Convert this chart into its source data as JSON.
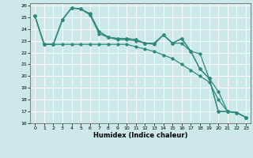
{
  "xlabel": "Humidex (Indice chaleur)",
  "bg_color": "#cce8e8",
  "grid_color": "#ffffff",
  "line_color": "#2e8b7a",
  "xlim": [
    -0.5,
    23.5
  ],
  "ylim": [
    16,
    26.2
  ],
  "yticks": [
    16,
    17,
    18,
    19,
    20,
    21,
    22,
    23,
    24,
    25,
    26
  ],
  "xticks": [
    0,
    1,
    2,
    3,
    4,
    5,
    6,
    7,
    8,
    9,
    10,
    11,
    12,
    13,
    14,
    15,
    16,
    17,
    18,
    19,
    20,
    21,
    22,
    23
  ],
  "line1_x": [
    0,
    1,
    2,
    3,
    4,
    5,
    6,
    7,
    8,
    9,
    10,
    11,
    12,
    13,
    14,
    15,
    16,
    17,
    18,
    19,
    20,
    21,
    22,
    23
  ],
  "line1_y": [
    25.1,
    22.7,
    22.7,
    22.7,
    22.7,
    22.7,
    22.7,
    22.7,
    22.7,
    22.7,
    22.7,
    22.5,
    22.3,
    22.1,
    21.8,
    21.5,
    21.0,
    20.5,
    20.0,
    19.5,
    18.0,
    17.0,
    16.9,
    16.5
  ],
  "line2_x": [
    0,
    1,
    2,
    3,
    4,
    5,
    6,
    7,
    8,
    9,
    10,
    11,
    12,
    13,
    14,
    15,
    16,
    17,
    18,
    19,
    20,
    21,
    22,
    23
  ],
  "line2_y": [
    25.1,
    22.7,
    22.7,
    24.8,
    25.8,
    25.7,
    25.2,
    23.6,
    23.3,
    23.1,
    23.1,
    23.0,
    22.8,
    22.7,
    23.5,
    22.8,
    22.8,
    22.1,
    21.9,
    19.8,
    17.0,
    17.0,
    16.9,
    16.5
  ],
  "line3_x": [
    0,
    1,
    2,
    3,
    4,
    5,
    6,
    7,
    8,
    9,
    10,
    11,
    12,
    13,
    14,
    15,
    16,
    17,
    18,
    19,
    20,
    21,
    22,
    23
  ],
  "line3_y": [
    25.1,
    22.7,
    22.7,
    24.8,
    25.8,
    25.7,
    25.3,
    23.8,
    23.3,
    23.2,
    23.2,
    23.1,
    22.8,
    22.8,
    23.5,
    22.8,
    23.2,
    22.1,
    20.6,
    19.8,
    17.0,
    17.0,
    16.9,
    16.5
  ],
  "line4_x": [
    0,
    1,
    2,
    3,
    4,
    5,
    6,
    7,
    8,
    9,
    10,
    11,
    12,
    13,
    14,
    15,
    16,
    17,
    18,
    19,
    20,
    21,
    22,
    23
  ],
  "line4_y": [
    25.1,
    22.7,
    22.7,
    24.8,
    25.8,
    25.7,
    25.3,
    23.8,
    23.3,
    23.2,
    23.2,
    23.1,
    22.8,
    22.8,
    23.5,
    22.8,
    23.2,
    22.1,
    20.6,
    19.8,
    18.7,
    17.0,
    16.9,
    16.5
  ]
}
